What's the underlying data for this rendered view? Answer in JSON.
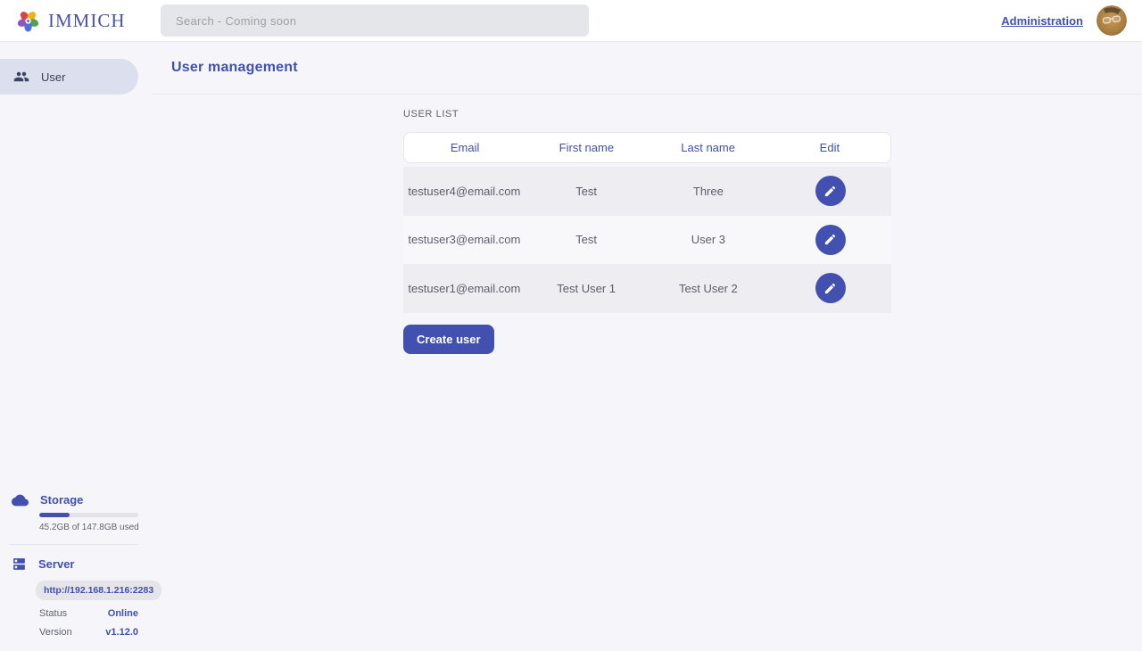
{
  "brand": {
    "name": "IMMICH"
  },
  "header": {
    "search_placeholder": "Search - Coming soon",
    "admin_link": "Administration"
  },
  "sidebar": {
    "items": [
      {
        "label": "User",
        "icon": "users-icon",
        "selected": true
      }
    ],
    "storage": {
      "title": "Storage",
      "icon": "cloud-icon",
      "usage_text": "45.2GB of 147.8GB used",
      "percent_used": 30.6
    },
    "server": {
      "title": "Server",
      "icon": "server-icon",
      "url": "http://192.168.1.216:2283",
      "rows": [
        {
          "label": "Status",
          "value": "Online"
        },
        {
          "label": "Version",
          "value": "v1.12.0"
        }
      ]
    }
  },
  "main": {
    "title": "User management",
    "section_label": "USER LIST",
    "table": {
      "columns": [
        "Email",
        "First name",
        "Last name",
        "Edit"
      ],
      "rows": [
        {
          "email": "testuser4@email.com",
          "first_name": "Test",
          "last_name": "Three"
        },
        {
          "email": "testuser3@email.com",
          "first_name": "Test",
          "last_name": "User 3"
        },
        {
          "email": "testuser1@email.com",
          "first_name": "Test User 1",
          "last_name": "Test User 2"
        }
      ]
    },
    "create_button": "Create user"
  },
  "colors": {
    "primary": "#4250af",
    "page_bg": "#f6f6fa",
    "selected_pill_bg": "#dce0ee",
    "row_alt_bg": "#ededf2"
  }
}
